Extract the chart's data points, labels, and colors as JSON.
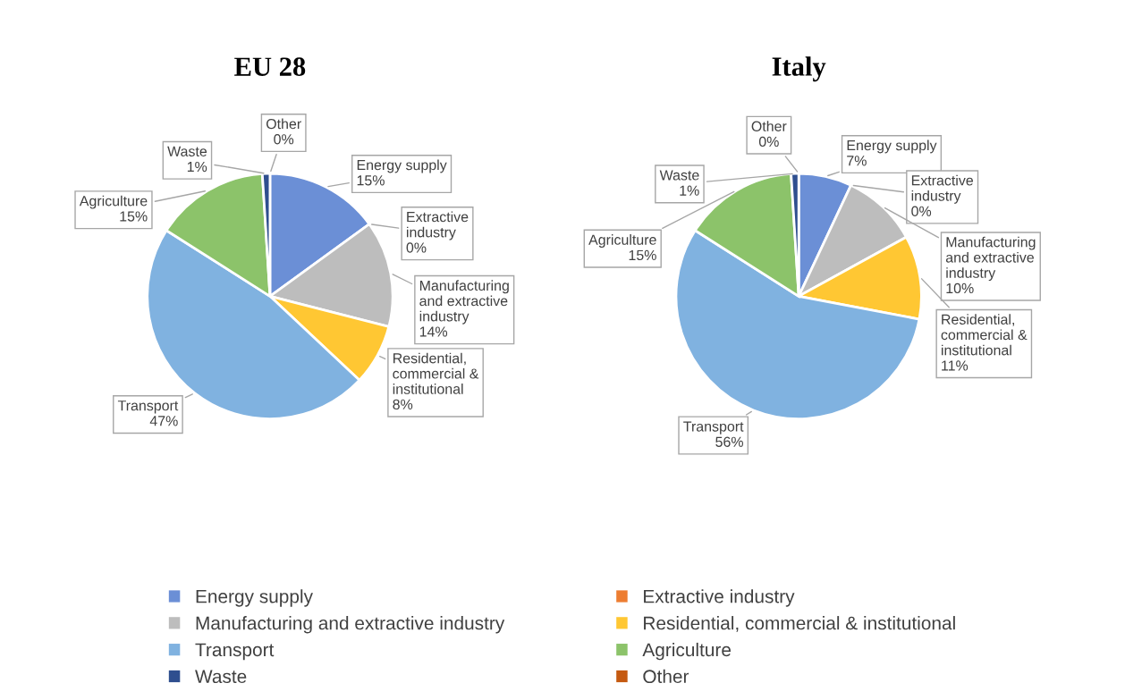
{
  "chart_data": [
    {
      "type": "pie",
      "title": "EU 28",
      "categories": [
        "Energy supply",
        "Extractive industry",
        "Manufacturing and extractive industry",
        "Residential, commercial & institutional",
        "Transport",
        "Agriculture",
        "Waste",
        "Other"
      ],
      "values": [
        15,
        0,
        14,
        8,
        47,
        15,
        1,
        0
      ],
      "value_labels": [
        "15%",
        "0%",
        "14%",
        "8%",
        "47%",
        "15%",
        "1%",
        "0%"
      ],
      "colors": [
        "#6b8fd6",
        "#ed7d31",
        "#bdbdbd",
        "#ffc733",
        "#80b2e0",
        "#8cc36a",
        "#2f4f8f",
        "#c55a11"
      ],
      "legend": "bottom"
    },
    {
      "type": "pie",
      "title": "Italy",
      "categories": [
        "Energy supply",
        "Extractive industry",
        "Manufacturing and extractive industry",
        "Residential, commercial & institutional",
        "Transport",
        "Agriculture",
        "Waste",
        "Other"
      ],
      "values": [
        7,
        0,
        10,
        11,
        56,
        15,
        1,
        0
      ],
      "value_labels": [
        "7%",
        "0%",
        "10%",
        "11%",
        "56%",
        "15%",
        "1%",
        "0%"
      ],
      "colors": [
        "#6b8fd6",
        "#ed7d31",
        "#bdbdbd",
        "#ffc733",
        "#80b2e0",
        "#8cc36a",
        "#2f4f8f",
        "#c55a11"
      ]
    }
  ]
}
